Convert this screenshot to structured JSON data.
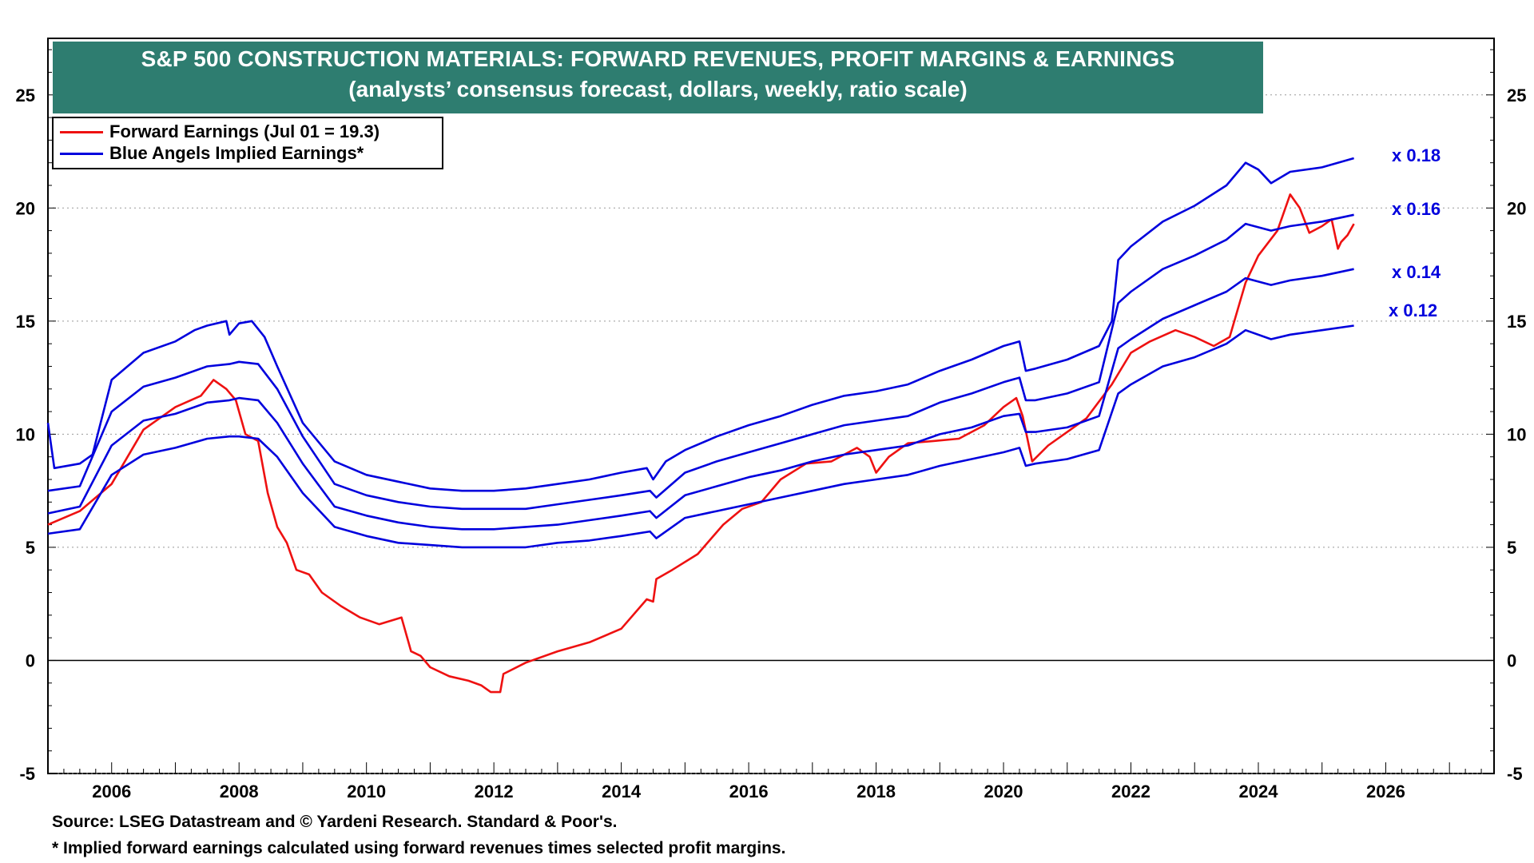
{
  "chart_data": {
    "type": "line",
    "title": "S&P 500 CONSTRUCTION MATERIALS: FORWARD REVENUES, PROFIT MARGINS & EARNINGS",
    "subtitle": "(analysts’ consensus forecast, dollars, weekly, ratio scale)",
    "xlim": [
      2005.0,
      2027.7
    ],
    "ylim": [
      -5,
      27.5
    ],
    "x_ticks": [
      2006,
      2008,
      2010,
      2012,
      2014,
      2016,
      2018,
      2020,
      2022,
      2024,
      2026
    ],
    "x_tick_labels": [
      "2006",
      "2008",
      "2010",
      "2012",
      "2014",
      "2016",
      "2018",
      "2020",
      "2022",
      "2024",
      "2026"
    ],
    "y_ticks": [
      -5,
      0,
      5,
      10,
      15,
      20,
      25
    ],
    "y_tick_labels": [
      "-5",
      "0",
      "5",
      "10",
      "15",
      "20",
      "25"
    ],
    "zero_line": true,
    "legend": [
      {
        "label": "Forward Earnings (Jul 01 = 19.3)",
        "color": "#ee1111"
      },
      {
        "label": "Blue Angels Implied Earnings*",
        "color": "#0000dd"
      }
    ],
    "multiplier_labels": [
      "x 0.18",
      "x 0.16",
      "x 0.14",
      "x 0.12"
    ],
    "series": [
      {
        "name": "Forward Earnings",
        "color": "#ee1111",
        "x": [
          2005.0,
          2005.5,
          2006.0,
          2006.5,
          2007.0,
          2007.4,
          2007.6,
          2007.8,
          2007.95,
          2008.1,
          2008.3,
          2008.45,
          2008.6,
          2008.75,
          2008.9,
          2009.1,
          2009.3,
          2009.6,
          2009.9,
          2010.2,
          2010.55,
          2010.7,
          2010.85,
          2011.0,
          2011.3,
          2011.6,
          2011.8,
          2011.95,
          2012.1,
          2012.15,
          2012.5,
          2013.0,
          2013.5,
          2014.0,
          2014.4,
          2014.5,
          2014.55,
          2014.8,
          2015.2,
          2015.6,
          2015.9,
          2016.2,
          2016.5,
          2016.9,
          2017.3,
          2017.7,
          2017.9,
          2018.0,
          2018.2,
          2018.5,
          2018.9,
          2019.3,
          2019.7,
          2020.0,
          2020.2,
          2020.3,
          2020.45,
          2020.7,
          2021.0,
          2021.3,
          2021.7,
          2022.0,
          2022.3,
          2022.7,
          2023.0,
          2023.3,
          2023.55,
          2023.8,
          2024.0,
          2024.3,
          2024.5,
          2024.65,
          2024.8,
          2025.0,
          2025.15,
          2025.25,
          2025.3,
          2025.4,
          2025.5
        ],
        "values": [
          6.0,
          6.6,
          7.8,
          10.2,
          11.2,
          11.7,
          12.4,
          12.0,
          11.5,
          10.0,
          9.7,
          7.4,
          5.9,
          5.2,
          4.0,
          3.8,
          3.0,
          2.4,
          1.9,
          1.6,
          1.9,
          0.4,
          0.2,
          -0.3,
          -0.7,
          -0.9,
          -1.1,
          -1.4,
          -1.4,
          -0.6,
          -0.1,
          0.4,
          0.8,
          1.4,
          2.7,
          2.6,
          3.6,
          4.0,
          4.7,
          6.0,
          6.7,
          7.0,
          8.0,
          8.7,
          8.8,
          9.4,
          9.0,
          8.3,
          9.0,
          9.6,
          9.7,
          9.8,
          10.4,
          11.2,
          11.6,
          10.8,
          8.8,
          9.5,
          10.1,
          10.7,
          12.2,
          13.6,
          14.1,
          14.6,
          14.3,
          13.9,
          14.3,
          16.7,
          17.9,
          19.0,
          20.6,
          20.0,
          18.9,
          19.2,
          19.5,
          18.2,
          18.5,
          18.8,
          19.3
        ]
      },
      {
        "name": "Blue Angels Implied Earnings x 0.18",
        "color": "#0000dd",
        "x": [
          2005.0,
          2005.1,
          2005.5,
          2005.7,
          2006.0,
          2006.5,
          2007.0,
          2007.3,
          2007.5,
          2007.8,
          2007.85,
          2008.0,
          2008.2,
          2008.4,
          2008.6,
          2009.0,
          2009.5,
          2010.0,
          2010.5,
          2011.0,
          2011.5,
          2012.0,
          2012.5,
          2013.0,
          2013.5,
          2014.0,
          2014.4,
          2014.5,
          2014.7,
          2015.0,
          2015.5,
          2016.0,
          2016.5,
          2017.0,
          2017.5,
          2018.0,
          2018.5,
          2019.0,
          2019.5,
          2020.0,
          2020.25,
          2020.35,
          2020.5,
          2021.0,
          2021.5,
          2021.7,
          2021.8,
          2022.0,
          2022.5,
          2023.0,
          2023.5,
          2023.8,
          2024.0,
          2024.2,
          2024.5,
          2025.0,
          2025.5
        ],
        "values": [
          10.5,
          8.5,
          8.7,
          9.1,
          12.4,
          13.6,
          14.1,
          14.6,
          14.8,
          15.0,
          14.4,
          14.9,
          15.0,
          14.3,
          13.0,
          10.5,
          8.8,
          8.2,
          7.9,
          7.6,
          7.5,
          7.5,
          7.6,
          7.8,
          8.0,
          8.3,
          8.5,
          8.0,
          8.8,
          9.3,
          9.9,
          10.4,
          10.8,
          11.3,
          11.7,
          11.9,
          12.2,
          12.8,
          13.3,
          13.9,
          14.1,
          12.8,
          12.9,
          13.3,
          13.9,
          15.0,
          17.7,
          18.3,
          19.4,
          20.1,
          21.0,
          22.0,
          21.7,
          21.1,
          21.6,
          21.8,
          22.2
        ]
      },
      {
        "name": "Blue Angels Implied Earnings x 0.16",
        "color": "#0000dd",
        "x": [
          2005.0,
          2005.5,
          2006.0,
          2006.5,
          2007.0,
          2007.5,
          2007.85,
          2008.0,
          2008.3,
          2008.6,
          2009.0,
          2009.5,
          2010.0,
          2010.5,
          2011.0,
          2011.5,
          2012.0,
          2012.5,
          2013.0,
          2013.5,
          2014.0,
          2014.45,
          2014.55,
          2015.0,
          2015.5,
          2016.0,
          2016.5,
          2017.0,
          2017.5,
          2018.0,
          2018.5,
          2019.0,
          2019.5,
          2020.0,
          2020.25,
          2020.35,
          2020.5,
          2021.0,
          2021.5,
          2021.8,
          2022.0,
          2022.5,
          2023.0,
          2023.5,
          2023.8,
          2024.2,
          2024.5,
          2025.0,
          2025.5
        ],
        "values": [
          7.5,
          7.7,
          11.0,
          12.1,
          12.5,
          13.0,
          13.1,
          13.2,
          13.1,
          12.0,
          9.9,
          7.8,
          7.3,
          7.0,
          6.8,
          6.7,
          6.7,
          6.7,
          6.9,
          7.1,
          7.3,
          7.5,
          7.2,
          8.3,
          8.8,
          9.2,
          9.6,
          10.0,
          10.4,
          10.6,
          10.8,
          11.4,
          11.8,
          12.3,
          12.5,
          11.5,
          11.5,
          11.8,
          12.3,
          15.8,
          16.3,
          17.3,
          17.9,
          18.6,
          19.3,
          19.0,
          19.2,
          19.4,
          19.7
        ]
      },
      {
        "name": "Blue Angels Implied Earnings x 0.14",
        "color": "#0000dd",
        "x": [
          2005.0,
          2005.5,
          2006.0,
          2006.5,
          2007.0,
          2007.5,
          2007.85,
          2008.0,
          2008.3,
          2008.6,
          2009.0,
          2009.5,
          2010.0,
          2010.5,
          2011.0,
          2011.5,
          2012.0,
          2012.5,
          2013.0,
          2013.5,
          2014.0,
          2014.45,
          2014.55,
          2015.0,
          2015.5,
          2016.0,
          2016.5,
          2017.0,
          2017.5,
          2018.0,
          2018.5,
          2019.0,
          2019.5,
          2020.0,
          2020.25,
          2020.35,
          2020.5,
          2021.0,
          2021.5,
          2021.8,
          2022.0,
          2022.5,
          2023.0,
          2023.5,
          2023.8,
          2024.2,
          2024.5,
          2025.0,
          2025.5
        ],
        "values": [
          6.5,
          6.8,
          9.5,
          10.6,
          10.9,
          11.4,
          11.5,
          11.6,
          11.5,
          10.5,
          8.7,
          6.8,
          6.4,
          6.1,
          5.9,
          5.8,
          5.8,
          5.9,
          6.0,
          6.2,
          6.4,
          6.6,
          6.3,
          7.3,
          7.7,
          8.1,
          8.4,
          8.8,
          9.1,
          9.3,
          9.5,
          10.0,
          10.3,
          10.8,
          10.9,
          10.1,
          10.1,
          10.3,
          10.8,
          13.8,
          14.2,
          15.1,
          15.7,
          16.3,
          16.9,
          16.6,
          16.8,
          17.0,
          17.3
        ]
      },
      {
        "name": "Blue Angels Implied Earnings x 0.12",
        "color": "#0000dd",
        "x": [
          2005.0,
          2005.5,
          2006.0,
          2006.5,
          2007.0,
          2007.5,
          2007.85,
          2008.0,
          2008.3,
          2008.6,
          2009.0,
          2009.5,
          2010.0,
          2010.5,
          2011.0,
          2011.5,
          2012.0,
          2012.5,
          2013.0,
          2013.5,
          2014.0,
          2014.45,
          2014.55,
          2015.0,
          2015.5,
          2016.0,
          2016.5,
          2017.0,
          2017.5,
          2018.0,
          2018.5,
          2019.0,
          2019.5,
          2020.0,
          2020.25,
          2020.35,
          2020.5,
          2021.0,
          2021.5,
          2021.8,
          2022.0,
          2022.5,
          2023.0,
          2023.5,
          2023.8,
          2024.2,
          2024.5,
          2025.0,
          2025.5
        ],
        "values": [
          5.6,
          5.8,
          8.2,
          9.1,
          9.4,
          9.8,
          9.9,
          9.9,
          9.8,
          9.0,
          7.4,
          5.9,
          5.5,
          5.2,
          5.1,
          5.0,
          5.0,
          5.0,
          5.2,
          5.3,
          5.5,
          5.7,
          5.4,
          6.3,
          6.6,
          6.9,
          7.2,
          7.5,
          7.8,
          8.0,
          8.2,
          8.6,
          8.9,
          9.2,
          9.4,
          8.6,
          8.7,
          8.9,
          9.3,
          11.8,
          12.2,
          13.0,
          13.4,
          14.0,
          14.6,
          14.2,
          14.4,
          14.6,
          14.8
        ]
      }
    ],
    "source_note": "Source: LSEG Datastream and © Yardeni Research. Standard & Poor's.",
    "footnote": "* Implied forward earnings calculated using forward revenues times selected profit margins."
  }
}
